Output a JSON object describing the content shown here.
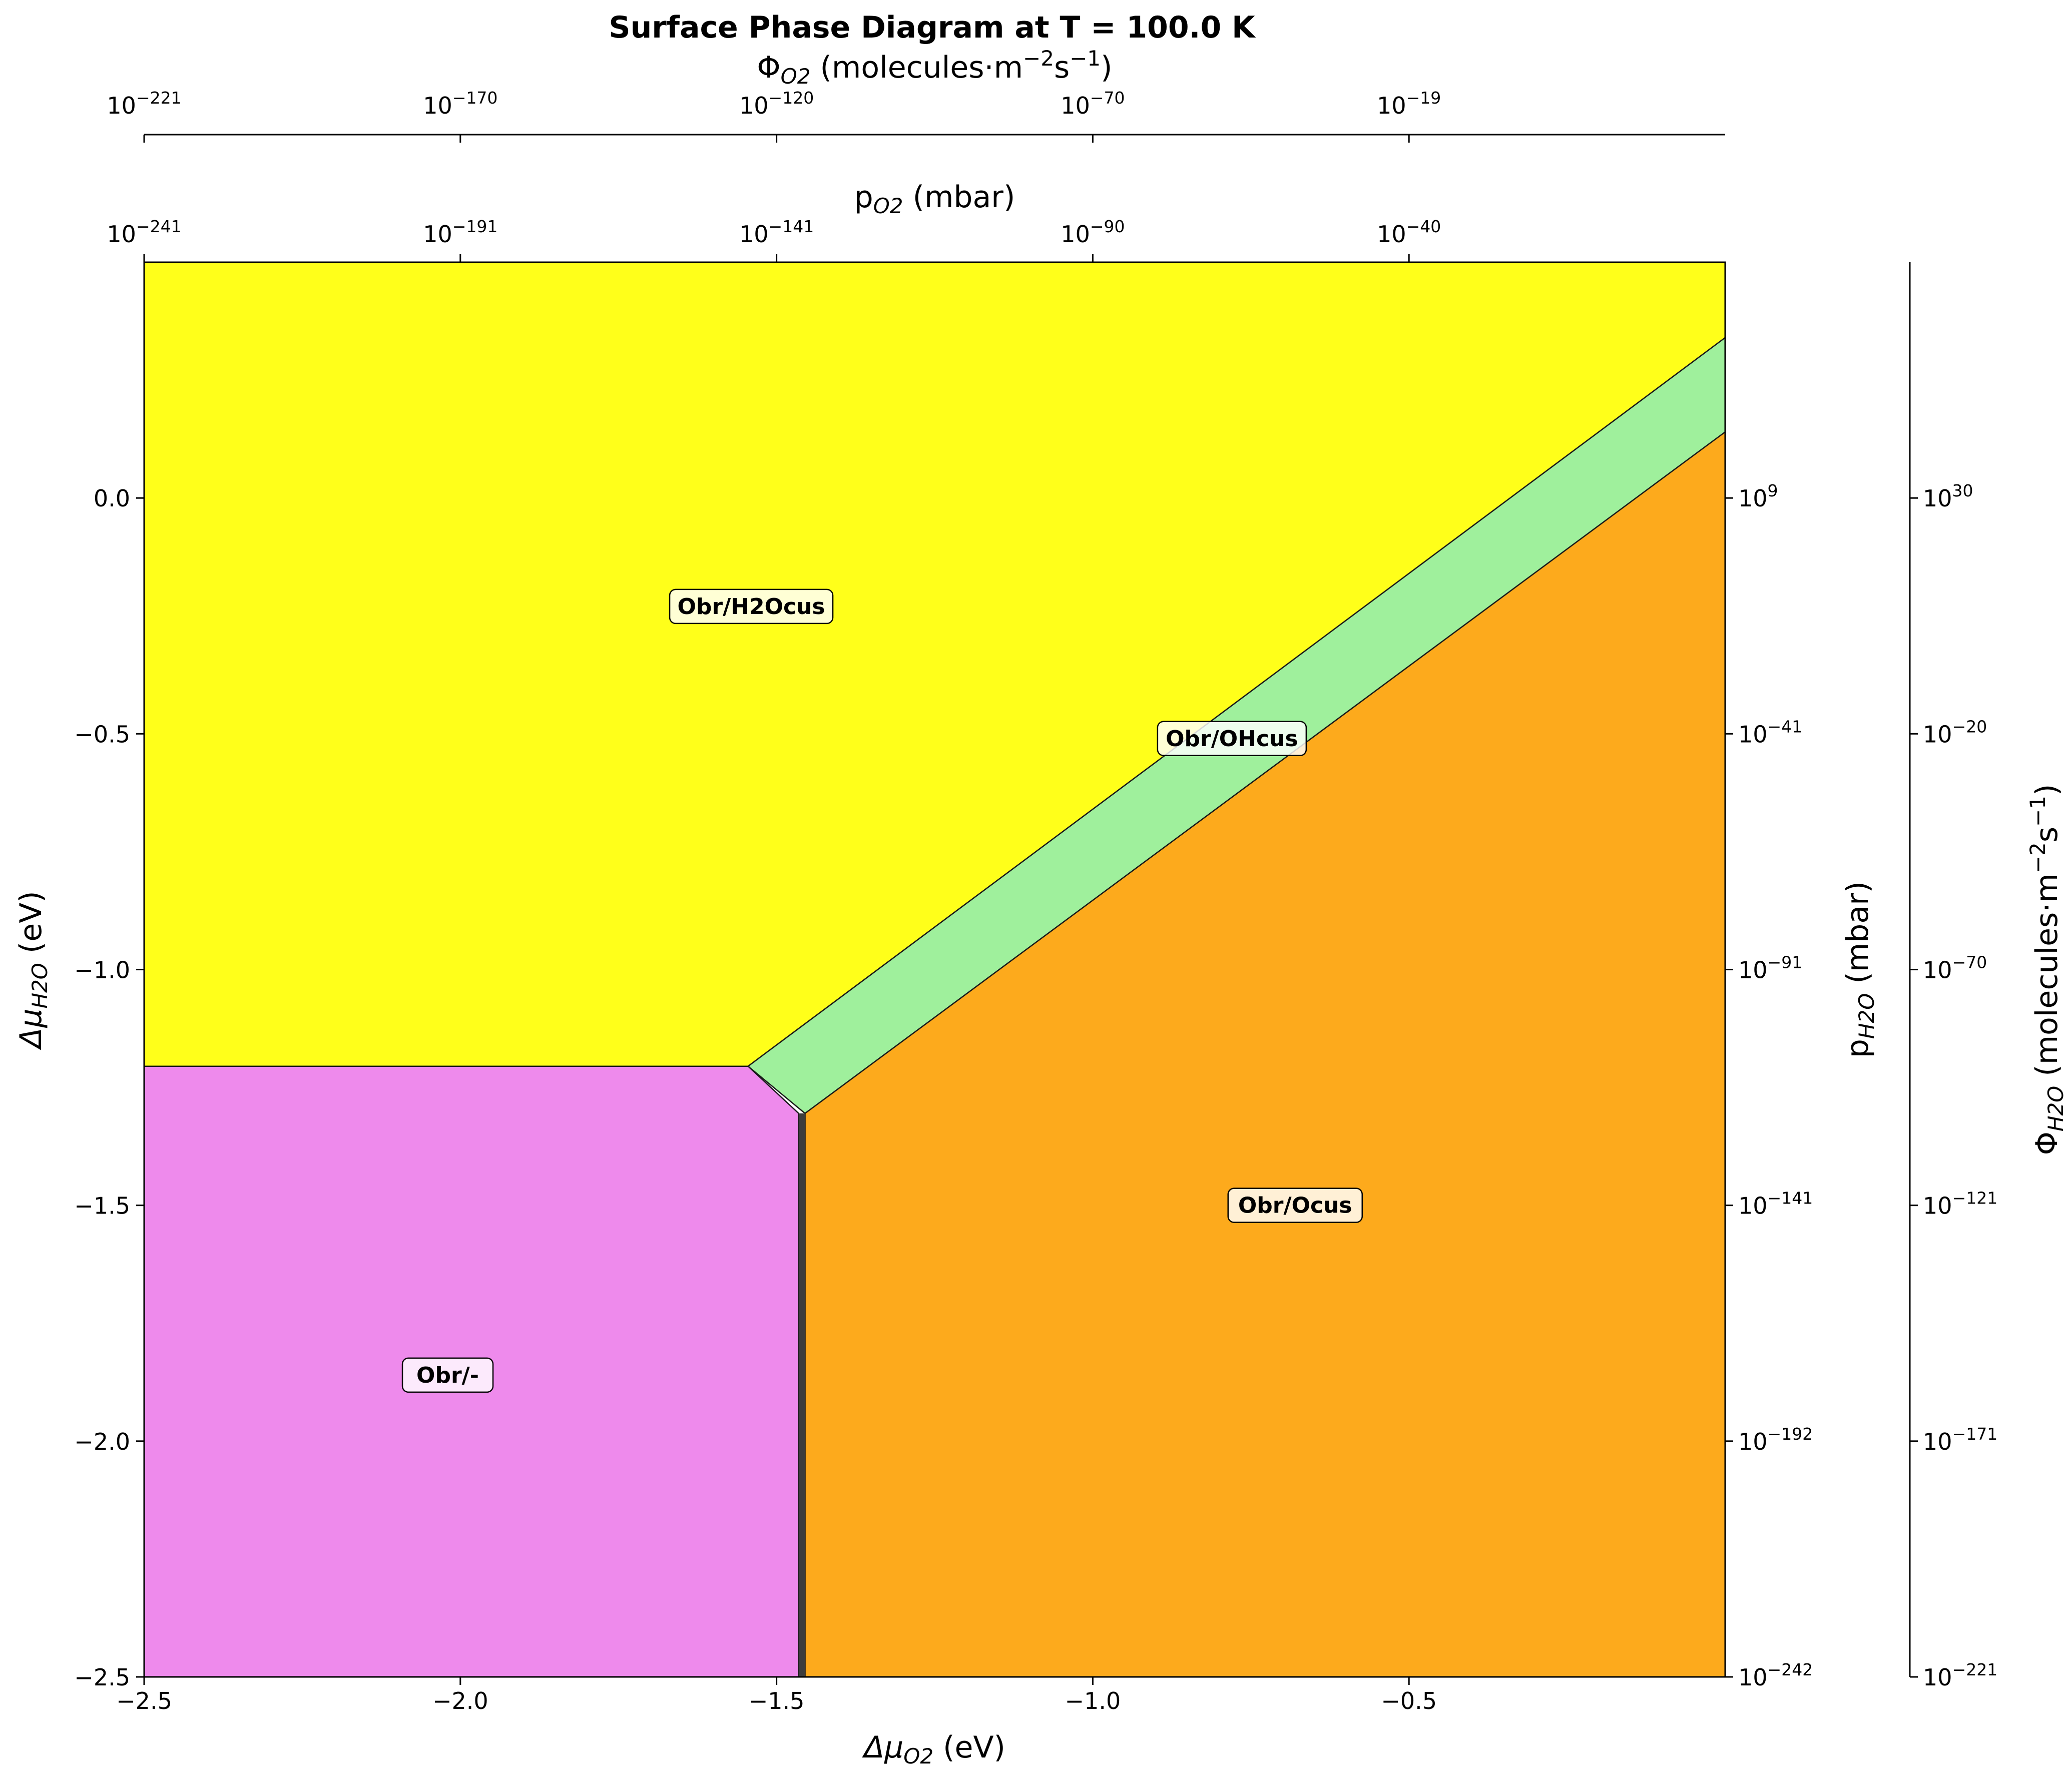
{
  "chart_data": {
    "type": "phase_diagram",
    "title": "Surface Phase Diagram at T = 100.0 K",
    "xlabel": "Δμ_O2 (eV)",
    "ylabel": "Δμ_H2O (eV)",
    "top_xlabel_inner": "p_O2 (mbar)",
    "top_xlabel_outer": "Φ_O2 (molecules·m⁻²s⁻¹)",
    "right_ylabel_inner": "p_H2O (mbar)",
    "right_ylabel_outer": "Φ_H2O (molecules·m⁻²s⁻¹)",
    "xlim": [
      -2.5,
      0.0
    ],
    "ylim": [
      -2.5,
      0.5
    ],
    "x_ticks": [
      {
        "v": -2.5,
        "label": "−2.5"
      },
      {
        "v": -2.0,
        "label": "−2.0"
      },
      {
        "v": -1.5,
        "label": "−1.5"
      },
      {
        "v": -1.0,
        "label": "−1.0"
      },
      {
        "v": -0.5,
        "label": "−0.5"
      }
    ],
    "y_ticks": [
      {
        "v": 0.0,
        "label": "0.0"
      },
      {
        "v": -0.5,
        "label": "−0.5"
      },
      {
        "v": -1.0,
        "label": "−1.0"
      },
      {
        "v": -1.5,
        "label": "−1.5"
      },
      {
        "v": -2.0,
        "label": "−2.0"
      },
      {
        "v": -2.5,
        "label": "−2.5"
      }
    ],
    "top_inner_ticks": [
      {
        "v": -2.5,
        "base": "10",
        "exp": "−241"
      },
      {
        "v": -2.0,
        "base": "10",
        "exp": "−191"
      },
      {
        "v": -1.5,
        "base": "10",
        "exp": "−141"
      },
      {
        "v": -1.0,
        "base": "10",
        "exp": "−90"
      },
      {
        "v": -0.5,
        "base": "10",
        "exp": "−40"
      }
    ],
    "top_outer_ticks": [
      {
        "v": -2.5,
        "base": "10",
        "exp": "−221"
      },
      {
        "v": -2.0,
        "base": "10",
        "exp": "−170"
      },
      {
        "v": -1.5,
        "base": "10",
        "exp": "−120"
      },
      {
        "v": -1.0,
        "base": "10",
        "exp": "−70"
      },
      {
        "v": -0.5,
        "base": "10",
        "exp": "−19"
      }
    ],
    "right_inner_ticks": [
      {
        "v": 0.0,
        "base": "10",
        "exp": "9"
      },
      {
        "v": -0.5,
        "base": "10",
        "exp": "−41"
      },
      {
        "v": -1.0,
        "base": "10",
        "exp": "−91"
      },
      {
        "v": -1.5,
        "base": "10",
        "exp": "−141"
      },
      {
        "v": -2.0,
        "base": "10",
        "exp": "−192"
      },
      {
        "v": -2.5,
        "base": "10",
        "exp": "−242"
      }
    ],
    "right_outer_ticks": [
      {
        "v": 0.0,
        "base": "10",
        "exp": "30"
      },
      {
        "v": -0.5,
        "base": "10",
        "exp": "−20"
      },
      {
        "v": -1.0,
        "base": "10",
        "exp": "−70"
      },
      {
        "v": -1.5,
        "base": "10",
        "exp": "−121"
      },
      {
        "v": -2.0,
        "base": "10",
        "exp": "−171"
      },
      {
        "v": -2.5,
        "base": "10",
        "exp": "−221"
      }
    ],
    "phases": [
      {
        "name": "Obr/H2Ocus",
        "color": "#ffff1a",
        "label_at": [
          -1.54,
          -0.23
        ],
        "polygon": [
          [
            -2.5,
            0.5
          ],
          [
            0.0,
            0.5
          ],
          [
            0.0,
            0.34
          ],
          [
            -1.545,
            -1.205
          ],
          [
            -2.5,
            -1.205
          ]
        ]
      },
      {
        "name": "Obr/OHcus",
        "color": "#9ff09c",
        "label_at": [
          -0.78,
          -0.51
        ],
        "polygon": [
          [
            -1.545,
            -1.205
          ],
          [
            0.0,
            0.34
          ],
          [
            0.0,
            0.14
          ],
          [
            -1.455,
            -1.305
          ]
        ]
      },
      {
        "name": "Obr/Ocus",
        "color": "#fdaa1c",
        "label_at": [
          -0.68,
          -1.5
        ],
        "polygon": [
          [
            -1.455,
            -1.305
          ],
          [
            0.0,
            0.14
          ],
          [
            0.0,
            -2.5
          ],
          [
            -1.455,
            -2.5
          ]
        ]
      },
      {
        "name": "Obr/-",
        "color": "#ee8aec",
        "label_at": [
          -2.02,
          -1.86
        ],
        "polygon": [
          [
            -2.5,
            -1.205
          ],
          [
            -1.545,
            -1.205
          ],
          [
            -1.465,
            -1.305
          ],
          [
            -1.465,
            -2.5
          ],
          [
            -2.5,
            -2.5
          ]
        ]
      }
    ],
    "grid": false,
    "legend": "none (labels placed inside phase regions)"
  }
}
